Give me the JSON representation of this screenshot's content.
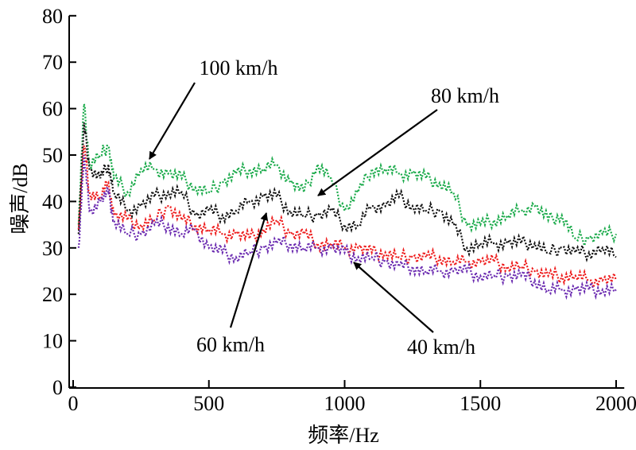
{
  "chart_data": {
    "type": "line",
    "title": "",
    "xlabel": "频率/Hz",
    "ylabel": "噪声/dB",
    "xlim": [
      0,
      2030
    ],
    "ylim": [
      0,
      80
    ],
    "xticks": [
      0,
      500,
      1000,
      1500,
      2000
    ],
    "yticks": [
      0,
      10,
      20,
      30,
      40,
      50,
      60,
      70,
      80
    ],
    "grid": false,
    "x": [
      20,
      40,
      60,
      100,
      130,
      150,
      200,
      250,
      300,
      350,
      400,
      450,
      500,
      550,
      600,
      650,
      700,
      750,
      800,
      850,
      900,
      950,
      1000,
      1050,
      1100,
      1150,
      1200,
      1250,
      1300,
      1350,
      1400,
      1450,
      1500,
      1550,
      1600,
      1650,
      1700,
      1750,
      1800,
      1850,
      1900,
      1950,
      2000
    ],
    "series": [
      {
        "name": "100 km/h",
        "color": "#1aaa4a",
        "values": [
          35,
          61,
          48,
          50,
          52,
          45,
          42,
          47,
          47,
          46,
          45,
          43,
          42,
          44,
          46,
          47,
          47,
          48,
          44,
          42,
          48,
          45,
          38,
          42,
          47,
          47,
          46,
          46,
          45,
          44,
          42,
          35,
          35,
          36,
          37,
          38,
          39,
          36,
          37,
          32,
          32,
          33,
          33
        ]
      },
      {
        "name": "80 km/h",
        "color": "#111111",
        "values": [
          33,
          57,
          47,
          45,
          48,
          42,
          38,
          39,
          41,
          42,
          42,
          37,
          38,
          37,
          38,
          40,
          41,
          41,
          38,
          37,
          37,
          38,
          35,
          35,
          39,
          39,
          41,
          39,
          38,
          38,
          35,
          30,
          31,
          31,
          31,
          31,
          31,
          29,
          30,
          29,
          29,
          30,
          28
        ]
      },
      {
        "name": "60 km/h",
        "color": "#ee1c1c",
        "values": [
          34,
          52,
          42,
          41,
          44,
          37,
          36,
          35,
          36,
          39,
          36,
          35,
          34,
          33,
          33,
          32,
          34,
          36,
          33,
          33,
          31,
          31,
          30,
          30,
          29,
          29,
          28,
          28,
          28,
          28,
          27,
          27,
          27,
          27,
          26,
          26,
          25,
          24,
          24,
          24,
          23,
          23,
          23
        ]
      },
      {
        "name": "40 km/h",
        "color": "#6a2ab0",
        "values": [
          30,
          50,
          38,
          40,
          42,
          36,
          33,
          33,
          35,
          35,
          33,
          34,
          30,
          29,
          28,
          29,
          30,
          31,
          31,
          30,
          30,
          30,
          29,
          28,
          28,
          27,
          26,
          26,
          25,
          25,
          25,
          25,
          24,
          24,
          24,
          24,
          23,
          21,
          21,
          21,
          21,
          21,
          21
        ]
      }
    ],
    "annotations": [
      {
        "text": "100 km/h",
        "series": "100 km/h"
      },
      {
        "text": "80 km/h",
        "series": "80 km/h"
      },
      {
        "text": "60 km/h",
        "series": "60 km/h"
      },
      {
        "text": "40 km/h",
        "series": "40 km/h"
      }
    ]
  }
}
